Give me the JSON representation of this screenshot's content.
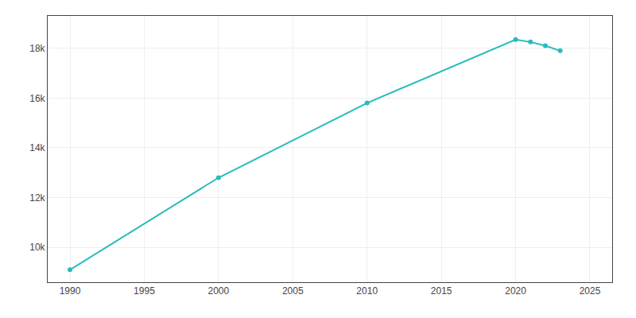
{
  "chart_data": {
    "type": "line",
    "x": [
      1990,
      2000,
      2010,
      2020,
      2021,
      2022,
      2023
    ],
    "values": [
      9100,
      12800,
      15800,
      18350,
      18250,
      18100,
      17900
    ],
    "color": "#29bcbc",
    "marker": "circle",
    "xlim": [
      1988.5,
      2026.5
    ],
    "xticks": [
      1990,
      1995,
      2000,
      2005,
      2010,
      2015,
      2020,
      2025
    ],
    "ylim": [
      8600,
      19300
    ],
    "yticks": [
      {
        "value": 10000,
        "label": "10k"
      },
      {
        "value": 12000,
        "label": "12k"
      },
      {
        "value": 14000,
        "label": "14k"
      },
      {
        "value": 16000,
        "label": "16k"
      },
      {
        "value": 18000,
        "label": "18k"
      }
    ],
    "grid": true
  }
}
